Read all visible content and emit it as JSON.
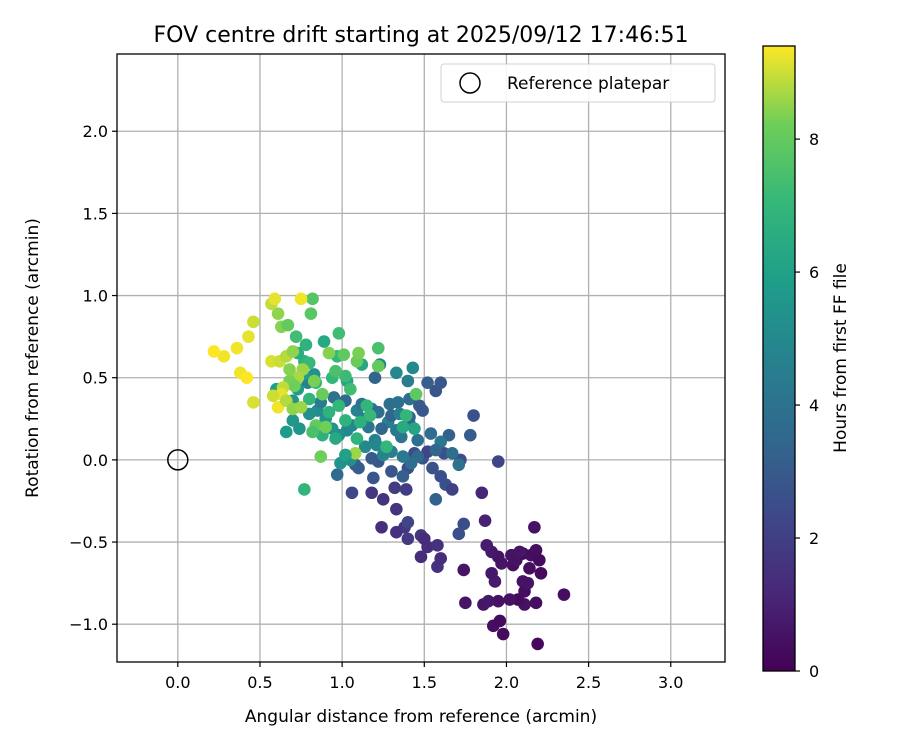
{
  "chart_data": {
    "type": "scatter",
    "title": "FOV centre drift starting at 2025/09/12 17:46:51",
    "xlabel": "Angular distance from reference (arcmin)",
    "ylabel": "Rotation from reference (arcmin)",
    "xlim": [
      -0.37,
      3.33
    ],
    "ylim": [
      -1.23,
      2.47
    ],
    "xticks": [
      0.0,
      0.5,
      1.0,
      1.5,
      2.0,
      2.5,
      3.0
    ],
    "xtick_labels": [
      "0.0",
      "0.5",
      "1.0",
      "1.5",
      "2.0",
      "2.5",
      "3.0"
    ],
    "yticks": [
      -1.0,
      -0.5,
      0.0,
      0.5,
      1.0,
      1.5,
      2.0
    ],
    "ytick_labels": [
      "−1.0",
      "−0.5",
      "0.0",
      "0.5",
      "1.0",
      "1.5",
      "2.0"
    ],
    "grid": true,
    "legend": {
      "placement": "top-right",
      "entries": [
        "Reference platepar"
      ]
    },
    "colormap": "viridis",
    "colorbar": {
      "label": "Hours from first FF file",
      "range": [
        0,
        9.4
      ],
      "ticks": [
        0,
        2,
        4,
        6,
        8
      ],
      "tick_labels": [
        "0",
        "2",
        "4",
        "6",
        "8"
      ]
    },
    "reference_point": {
      "x": 0.0,
      "y": 0.0
    },
    "points": [
      [
        2.19,
        -1.12,
        0.2
      ],
      [
        1.98,
        -1.06,
        0.3
      ],
      [
        1.92,
        -1.01,
        0.4
      ],
      [
        1.96,
        -0.98,
        0.3
      ],
      [
        2.11,
        -0.88,
        0.5
      ],
      [
        2.07,
        -0.85,
        0.3
      ],
      [
        2.18,
        -0.87,
        0.4
      ],
      [
        2.35,
        -0.82,
        0.4
      ],
      [
        1.86,
        -0.88,
        0.6
      ],
      [
        1.95,
        -0.86,
        0.5
      ],
      [
        1.75,
        -0.87,
        0.6
      ],
      [
        2.11,
        -0.8,
        0.4
      ],
      [
        1.89,
        -0.86,
        0.7
      ],
      [
        2.02,
        -0.85,
        0.5
      ],
      [
        2.13,
        -0.75,
        0.6
      ],
      [
        2.1,
        -0.74,
        0.5
      ],
      [
        1.93,
        -0.74,
        0.8
      ],
      [
        1.91,
        -0.69,
        0.7
      ],
      [
        2.04,
        -0.64,
        0.4
      ],
      [
        2.21,
        -0.69,
        0.3
      ],
      [
        2.14,
        -0.66,
        0.4
      ],
      [
        2.06,
        -0.61,
        0.5
      ],
      [
        1.97,
        -0.63,
        0.6
      ],
      [
        1.95,
        -0.59,
        0.5
      ],
      [
        2.1,
        -0.57,
        0.3
      ],
      [
        2.15,
        -0.58,
        0.4
      ],
      [
        2.2,
        -0.61,
        0.3
      ],
      [
        2.03,
        -0.58,
        0.5
      ],
      [
        2.08,
        -0.56,
        0.6
      ],
      [
        2.18,
        -0.55,
        0.4
      ],
      [
        1.91,
        -0.56,
        0.7
      ],
      [
        1.88,
        -0.52,
        0.8
      ],
      [
        2.17,
        -0.41,
        0.5
      ],
      [
        1.74,
        -0.67,
        0.6
      ],
      [
        1.87,
        -0.37,
        1.0
      ],
      [
        1.85,
        -0.2,
        1.1
      ],
      [
        1.95,
        -0.01,
        2.2
      ],
      [
        1.58,
        -0.65,
        1.5
      ],
      [
        1.48,
        -0.59,
        1.3
      ],
      [
        1.6,
        -0.6,
        1.4
      ],
      [
        1.52,
        -0.53,
        1.4
      ],
      [
        1.58,
        -0.52,
        1.5
      ],
      [
        1.48,
        -0.46,
        1.7
      ],
      [
        1.4,
        -0.48,
        1.8
      ],
      [
        1.38,
        -0.41,
        1.7
      ],
      [
        1.33,
        -0.44,
        1.5
      ],
      [
        1.24,
        -0.41,
        1.4
      ],
      [
        1.4,
        -0.38,
        2.2
      ],
      [
        1.5,
        -0.48,
        1.3
      ],
      [
        1.71,
        -0.45,
        2.6
      ],
      [
        1.74,
        -0.39,
        2.5
      ],
      [
        1.33,
        -0.3,
        1.6
      ],
      [
        1.39,
        -0.18,
        1.9
      ],
      [
        1.25,
        -0.24,
        1.6
      ],
      [
        1.18,
        -0.2,
        1.7
      ],
      [
        1.32,
        -0.17,
        1.9
      ],
      [
        1.06,
        -0.2,
        2.3
      ],
      [
        1.57,
        -0.24,
        3.3
      ],
      [
        1.6,
        -0.1,
        2.6
      ],
      [
        1.63,
        -0.15,
        2.6
      ],
      [
        1.67,
        -0.18,
        2.1
      ],
      [
        1.55,
        -0.05,
        2.7
      ],
      [
        1.72,
        0.0,
        2.6
      ],
      [
        1.62,
        0.04,
        2.6
      ],
      [
        1.49,
        0.01,
        2.7
      ],
      [
        1.52,
        0.05,
        2.2
      ],
      [
        1.44,
        0.04,
        2.5
      ],
      [
        1.4,
        -0.05,
        2.5
      ],
      [
        1.3,
        -0.07,
        2.8
      ],
      [
        1.19,
        -0.11,
        2.8
      ],
      [
        1.22,
        -0.01,
        2.9
      ],
      [
        1.18,
        0.01,
        3.0
      ],
      [
        1.1,
        -0.05,
        3.1
      ],
      [
        1.08,
        -0.03,
        3.2
      ],
      [
        0.97,
        -0.09,
        3.6
      ],
      [
        1.37,
        -0.1,
        3.2
      ],
      [
        1.54,
        0.16,
        3.7
      ],
      [
        1.46,
        0.12,
        3.9
      ],
      [
        1.41,
        0.22,
        4.3
      ],
      [
        1.36,
        0.14,
        4.1
      ],
      [
        1.33,
        0.18,
        4.3
      ],
      [
        1.28,
        0.23,
        4.5
      ],
      [
        1.24,
        0.19,
        3.5
      ],
      [
        1.2,
        0.12,
        4.6
      ],
      [
        1.16,
        0.2,
        4.1
      ],
      [
        1.13,
        0.25,
        4.6
      ],
      [
        1.09,
        0.3,
        4.7
      ],
      [
        1.06,
        0.21,
        4.9
      ],
      [
        1.03,
        0.18,
        5.0
      ],
      [
        0.98,
        0.15,
        5.2
      ],
      [
        0.94,
        0.19,
        5.4
      ],
      [
        0.9,
        0.25,
        5.5
      ],
      [
        0.85,
        0.3,
        5.2
      ],
      [
        0.8,
        0.28,
        5.3
      ],
      [
        0.74,
        0.19,
        5.5
      ],
      [
        0.7,
        0.24,
        5.6
      ],
      [
        0.66,
        0.17,
        5.8
      ],
      [
        1.12,
        0.34,
        4.0
      ],
      [
        1.18,
        0.31,
        4.2
      ],
      [
        1.22,
        0.29,
        3.8
      ],
      [
        1.29,
        0.34,
        3.9
      ],
      [
        1.34,
        0.35,
        3.9
      ],
      [
        1.41,
        0.37,
        3.8
      ],
      [
        1.47,
        0.33,
        3.0
      ],
      [
        1.49,
        0.3,
        2.9
      ],
      [
        1.57,
        0.42,
        2.8
      ],
      [
        1.52,
        0.47,
        3.2
      ],
      [
        1.6,
        0.47,
        2.9
      ],
      [
        1.8,
        0.27,
        2.7
      ],
      [
        1.78,
        0.15,
        3.1
      ],
      [
        1.65,
        0.15,
        3.3
      ],
      [
        1.67,
        0.04,
        3.8
      ],
      [
        1.71,
        -0.03,
        4.0
      ],
      [
        1.6,
        0.11,
        4.2
      ],
      [
        1.57,
        0.06,
        3.5
      ],
      [
        1.46,
        0.02,
        3.6
      ],
      [
        1.42,
        -0.02,
        3.8
      ],
      [
        1.37,
        0.02,
        4.3
      ],
      [
        1.3,
        0.05,
        4.5
      ],
      [
        1.25,
        0.03,
        4.8
      ],
      [
        1.21,
        0.09,
        4.9
      ],
      [
        1.14,
        0.08,
        5.0
      ],
      [
        1.05,
        0.0,
        5.3
      ],
      [
        0.99,
        -0.02,
        5.5
      ],
      [
        1.23,
        0.58,
        4.8
      ],
      [
        1.33,
        0.53,
        4.9
      ],
      [
        1.4,
        0.48,
        4.5
      ],
      [
        1.43,
        0.56,
        5.0
      ],
      [
        1.2,
        0.5,
        3.4
      ],
      [
        1.41,
        0.26,
        3.3
      ],
      [
        1.3,
        0.27,
        3.4
      ],
      [
        1.35,
        0.28,
        4.6
      ],
      [
        1.02,
        0.36,
        3.6
      ],
      [
        0.95,
        0.38,
        4.0
      ],
      [
        0.87,
        0.35,
        4.4
      ],
      [
        0.79,
        0.47,
        4.7
      ],
      [
        0.83,
        0.52,
        5.4
      ],
      [
        0.73,
        0.43,
        5.7
      ],
      [
        0.6,
        0.43,
        5.9
      ],
      [
        0.7,
        0.36,
        5.6
      ],
      [
        0.76,
        0.52,
        5.9
      ],
      [
        1.03,
        0.48,
        6.2
      ],
      [
        0.89,
        0.72,
        6.4
      ],
      [
        0.97,
        0.63,
        7.0
      ],
      [
        1.02,
        0.51,
        7.2
      ],
      [
        1.12,
        0.58,
        6.3
      ],
      [
        1.15,
        0.33,
        6.9
      ],
      [
        1.17,
        0.27,
        7.1
      ],
      [
        1.11,
        0.23,
        6.7
      ],
      [
        0.98,
        0.33,
        7.0
      ],
      [
        0.92,
        0.29,
        6.8
      ],
      [
        0.88,
        0.15,
        6.7
      ],
      [
        0.8,
        0.37,
        6.9
      ],
      [
        0.77,
        0.6,
        6.8
      ],
      [
        0.73,
        0.65,
        6.5
      ],
      [
        0.72,
        0.75,
        7.3
      ],
      [
        0.78,
        0.7,
        6.8
      ],
      [
        0.8,
        0.59,
        7.1
      ],
      [
        0.84,
        0.47,
        7.0
      ],
      [
        0.94,
        0.5,
        7.0
      ],
      [
        0.98,
        0.77,
        7.3
      ],
      [
        1.01,
        0.64,
        7.9
      ],
      [
        1.09,
        0.6,
        8.1
      ],
      [
        1.1,
        0.65,
        8.3
      ],
      [
        0.96,
        0.54,
        7.5
      ],
      [
        1.05,
        0.43,
        7.3
      ],
      [
        0.82,
        0.98,
        7.7
      ],
      [
        0.81,
        0.89,
        7.8
      ],
      [
        0.77,
        -0.18,
        6.9
      ],
      [
        0.63,
        0.81,
        8.4
      ],
      [
        0.67,
        0.82,
        8.0
      ],
      [
        0.61,
        0.89,
        8.5
      ],
      [
        0.57,
        0.95,
        8.9
      ],
      [
        0.59,
        0.98,
        9.2
      ],
      [
        0.75,
        0.98,
        9.3
      ],
      [
        0.46,
        0.84,
        9.0
      ],
      [
        0.43,
        0.75,
        9.2
      ],
      [
        0.36,
        0.68,
        9.3
      ],
      [
        0.28,
        0.63,
        9.3
      ],
      [
        0.22,
        0.66,
        9.4
      ],
      [
        0.38,
        0.53,
        9.3
      ],
      [
        0.42,
        0.5,
        9.4
      ],
      [
        0.46,
        0.35,
        9.1
      ],
      [
        0.57,
        0.6,
        9.1
      ],
      [
        0.62,
        0.6,
        9.0
      ],
      [
        0.66,
        0.63,
        8.8
      ],
      [
        0.7,
        0.66,
        8.5
      ],
      [
        0.76,
        0.55,
        8.6
      ],
      [
        0.73,
        0.5,
        8.7
      ],
      [
        0.68,
        0.48,
        8.3
      ],
      [
        0.71,
        0.45,
        8.2
      ],
      [
        0.64,
        0.44,
        8.9
      ],
      [
        0.63,
        0.4,
        9.2
      ],
      [
        0.58,
        0.39,
        9.0
      ],
      [
        0.61,
        0.32,
        9.3
      ],
      [
        0.66,
        0.36,
        8.8
      ],
      [
        0.7,
        0.31,
        8.5
      ],
      [
        0.75,
        0.32,
        8.6
      ],
      [
        0.68,
        0.55,
        8.4
      ],
      [
        0.83,
        0.48,
        8.3
      ],
      [
        0.88,
        0.4,
        8.1
      ],
      [
        0.84,
        0.21,
        8.0
      ],
      [
        0.9,
        0.2,
        8.2
      ],
      [
        0.82,
        0.17,
        7.5
      ],
      [
        0.92,
        0.65,
        8.4
      ],
      [
        0.87,
        0.02,
        8.2
      ],
      [
        1.08,
        0.04,
        8.6
      ],
      [
        1.22,
        0.57,
        8.0
      ],
      [
        1.22,
        0.68,
        7.5
      ],
      [
        1.02,
        0.24,
        6.8
      ],
      [
        1.45,
        0.4,
        7.9
      ],
      [
        1.39,
        0.27,
        7.0
      ],
      [
        1.37,
        0.2,
        6.4
      ],
      [
        1.44,
        0.19,
        6.2
      ],
      [
        1.27,
        0.08,
        7.0
      ],
      [
        1.09,
        0.13,
        6.8
      ],
      [
        0.96,
        0.13,
        6.4
      ],
      [
        1.02,
        0.03,
        6.0
      ]
    ]
  }
}
